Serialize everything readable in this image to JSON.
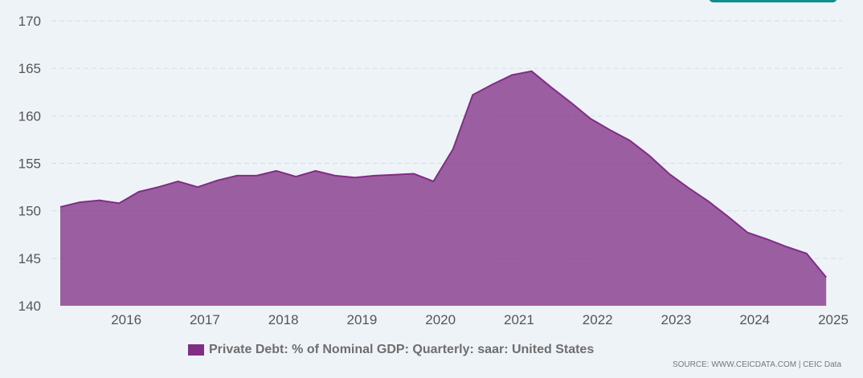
{
  "chart_data": {
    "type": "area",
    "title": "",
    "xlabel": "",
    "ylabel": "",
    "ylim": [
      140,
      170
    ],
    "yticks": [
      140,
      145,
      150,
      155,
      160,
      165,
      170
    ],
    "xticks": [
      2016,
      2017,
      2018,
      2019,
      2020,
      2021,
      2022,
      2023,
      2024,
      2025
    ],
    "xlim": [
      2015.16,
      2025.0
    ],
    "grid": "horizontal dashed",
    "legend_position": "bottom",
    "series": [
      {
        "name": "Private Debt: % of Nominal GDP: Quarterly: saar: United States",
        "color": "#7f2e84",
        "points": [
          [
            2015.16,
            150.4
          ],
          [
            2015.41,
            150.9
          ],
          [
            2015.66,
            151.1
          ],
          [
            2015.91,
            150.8
          ],
          [
            2016.16,
            152.0
          ],
          [
            2016.41,
            152.5
          ],
          [
            2016.66,
            153.1
          ],
          [
            2016.91,
            152.5
          ],
          [
            2017.16,
            153.2
          ],
          [
            2017.41,
            153.7
          ],
          [
            2017.66,
            153.7
          ],
          [
            2017.91,
            154.2
          ],
          [
            2018.16,
            153.6
          ],
          [
            2018.41,
            154.2
          ],
          [
            2018.66,
            153.7
          ],
          [
            2018.91,
            153.5
          ],
          [
            2019.16,
            153.7
          ],
          [
            2019.41,
            153.8
          ],
          [
            2019.66,
            153.9
          ],
          [
            2019.91,
            153.1
          ],
          [
            2020.16,
            156.5
          ],
          [
            2020.41,
            162.2
          ],
          [
            2020.66,
            163.3
          ],
          [
            2020.91,
            164.3
          ],
          [
            2021.16,
            164.7
          ],
          [
            2021.41,
            163.0
          ],
          [
            2021.66,
            161.4
          ],
          [
            2021.91,
            159.7
          ],
          [
            2022.16,
            158.5
          ],
          [
            2022.41,
            157.4
          ],
          [
            2022.66,
            155.8
          ],
          [
            2022.91,
            153.9
          ],
          [
            2023.16,
            152.4
          ],
          [
            2023.41,
            151.0
          ],
          [
            2023.66,
            149.4
          ],
          [
            2023.91,
            147.7
          ],
          [
            2024.16,
            147.0
          ],
          [
            2024.41,
            146.2
          ],
          [
            2024.66,
            145.5
          ],
          [
            2024.91,
            143.0
          ]
        ]
      }
    ]
  },
  "legend": {
    "label": "Private Debt: % of Nominal GDP: Quarterly: saar: United States",
    "color": "#7f2e84"
  },
  "source": "SOURCE: WWW.CEICDATA.COM | CEIC Data"
}
